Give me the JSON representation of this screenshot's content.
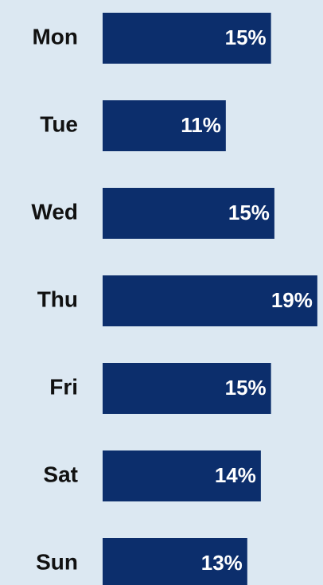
{
  "chart_data": {
    "type": "barh",
    "categories": [
      "Mon",
      "Tue",
      "Wed",
      "Thu",
      "Fri",
      "Sat",
      "Sun"
    ],
    "values": [
      14.9,
      10.9,
      15.2,
      19,
      14.9,
      14,
      12.8
    ],
    "value_labels": [
      "15%",
      "11%",
      "15%",
      "19%",
      "15%",
      "14%",
      "13%"
    ],
    "color": "#0c2e6c",
    "xlim": [
      0,
      19.5
    ]
  }
}
